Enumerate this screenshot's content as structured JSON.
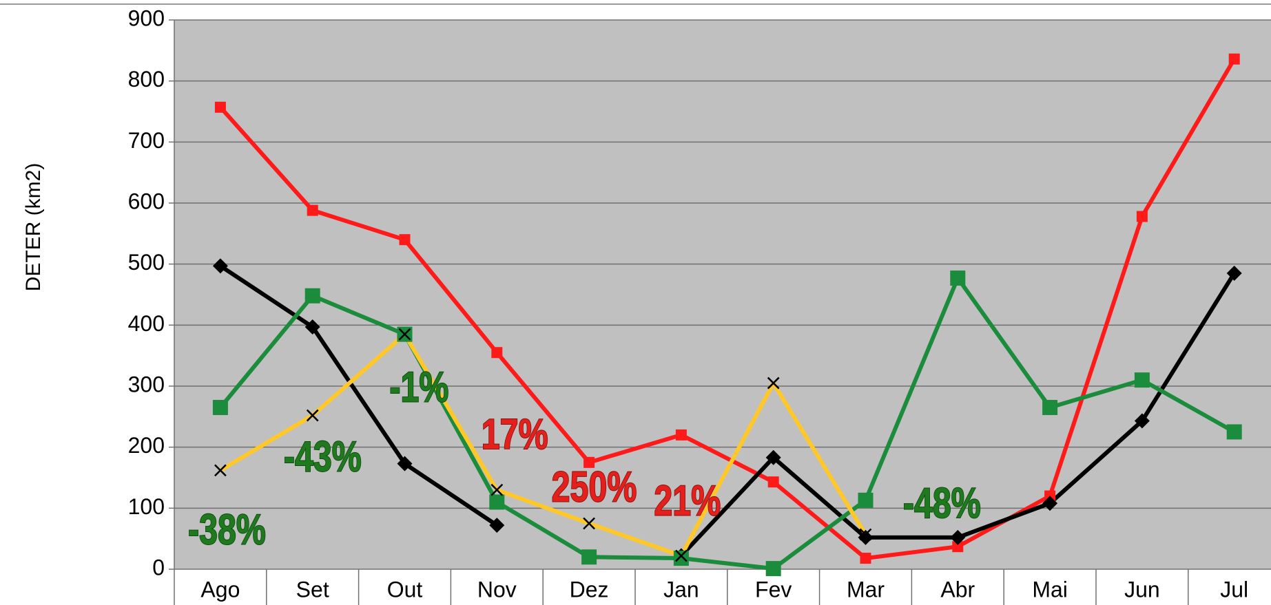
{
  "chart_data": {
    "type": "line",
    "y_label": "DETER (km2)",
    "categories": [
      "Ago",
      "Set",
      "Out",
      "Nov",
      "Dez",
      "Jan",
      "Fev",
      "Mar",
      "Abr",
      "Mai",
      "Jun",
      "Jul"
    ],
    "ylim": [
      0,
      900
    ],
    "yticks": [
      0,
      100,
      200,
      300,
      400,
      500,
      600,
      700,
      800,
      900
    ],
    "grid": true,
    "series": [
      {
        "color": "#ff1a1a",
        "marker": "square",
        "values": [
          757,
          588,
          540,
          355,
          175,
          220,
          143,
          18,
          37,
          120,
          578,
          836
        ]
      },
      {
        "color": "#000000",
        "marker": "diamond",
        "values": [
          497,
          397,
          173,
          72,
          null,
          22,
          183,
          52,
          52,
          108,
          243,
          485
        ]
      },
      {
        "color": "#1a8c3c",
        "marker": "square",
        "values": [
          265,
          448,
          385,
          110,
          20,
          18,
          1,
          113,
          477,
          265,
          310,
          225
        ]
      },
      {
        "color": "#ffc828",
        "marker": "x",
        "values": [
          162,
          252,
          385,
          130,
          75,
          22,
          305,
          57,
          null,
          null,
          null,
          null
        ]
      }
    ],
    "annotations": [
      {
        "text": "-38%",
        "color": "#1f7a1f"
      },
      {
        "text": "-43%",
        "color": "#1f7a1f"
      },
      {
        "text": "-1%",
        "color": "#1f7a1f"
      },
      {
        "text": "17%",
        "color": "#e3201b"
      },
      {
        "text": "250%",
        "color": "#e3201b"
      },
      {
        "text": "21%",
        "color": "#e3201b"
      },
      {
        "text": "-48%",
        "color": "#1f7a1f"
      }
    ]
  }
}
